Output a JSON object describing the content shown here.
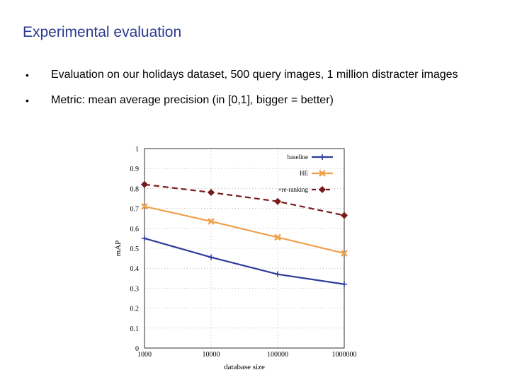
{
  "slide": {
    "title": "Experimental evaluation",
    "bullets": [
      "Evaluation on our holidays dataset, 500 query images, 1 million distracter images",
      "Metric: mean average precision (in [0,1], bigger = better)"
    ]
  },
  "chart_data": {
    "type": "line",
    "xscale": "log",
    "x": [
      1000,
      10000,
      100000,
      1000000
    ],
    "xtick_labels": [
      "1000",
      "10000",
      "100000",
      "1000000"
    ],
    "ytick_labels": [
      "0",
      "0.1",
      "0.2",
      "0.3",
      "0.4",
      "0.5",
      "0.6",
      "0.7",
      "0.8",
      "0.9",
      "1"
    ],
    "xlim": [
      1000,
      1000000
    ],
    "ylim": [
      0,
      1
    ],
    "xlabel": "database size",
    "ylabel": "mAP",
    "legend_position": "top-right",
    "grid": true,
    "series": [
      {
        "name": "baseline",
        "color": "#2e3d9a",
        "dash": false,
        "marker": "plus",
        "x": [
          1000,
          10000,
          100000,
          1000000
        ],
        "values": [
          0.55,
          0.455,
          0.37,
          0.32
        ]
      },
      {
        "name": "HE",
        "color": "#f0a04a",
        "dash": false,
        "marker": "cross",
        "x": [
          1000,
          10000,
          100000,
          1000000
        ],
        "values": [
          0.71,
          0.635,
          0.555,
          0.475
        ]
      },
      {
        "name": "+re-ranking",
        "color": "#7a1a1a",
        "dash": true,
        "marker": "diamond",
        "x": [
          1000,
          10000,
          100000,
          1000000
        ],
        "values": [
          0.82,
          0.78,
          0.735,
          0.665
        ]
      }
    ]
  }
}
